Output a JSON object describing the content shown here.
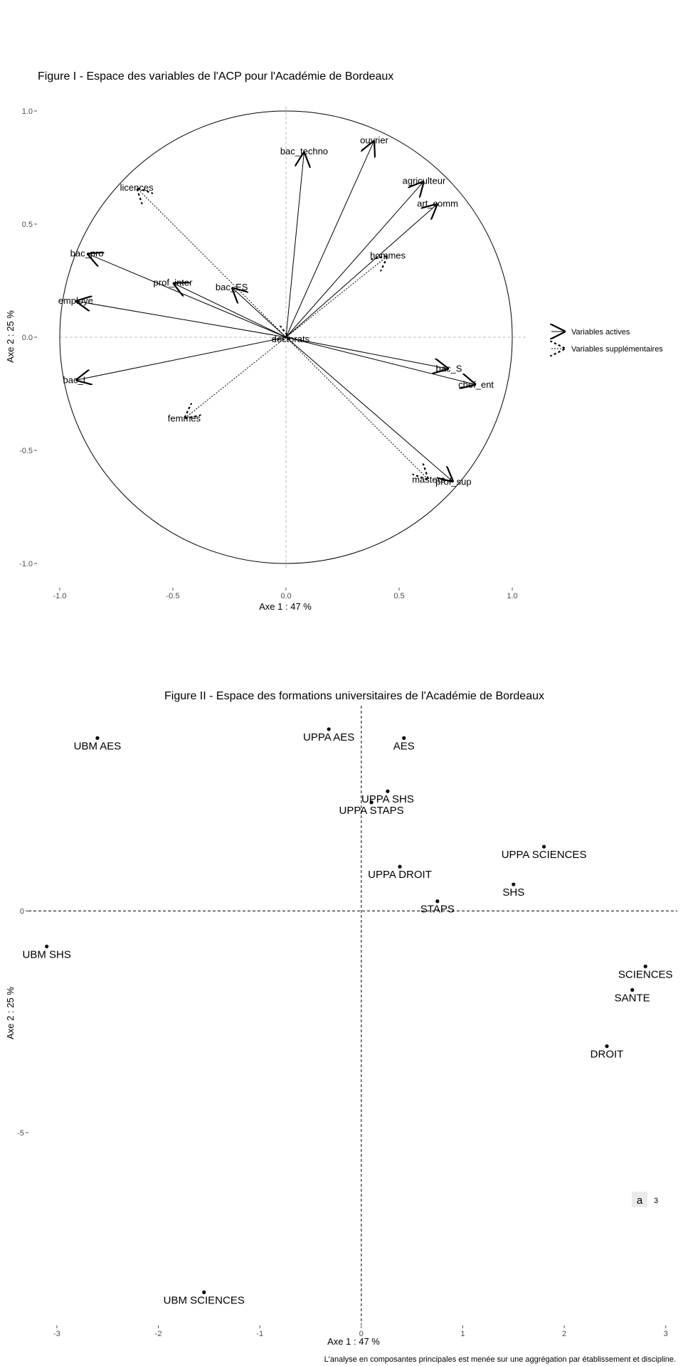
{
  "chart_data": [
    {
      "type": "vector",
      "title": "Figure I - Espace des variables de l'ACP pour l'Académie de Bordeaux",
      "xlabel": "Axe 1 : 47 %",
      "ylabel": "Axe 2 : 25 %",
      "xlim": [
        -1.0,
        1.0
      ],
      "ylim": [
        -1.0,
        1.0
      ],
      "xticks": [
        "-1.0",
        "-0.5",
        "0.0",
        "0.5",
        "1.0"
      ],
      "yticks": [
        "-1.0",
        "-0.5",
        "0.0",
        "0.5",
        "1.0"
      ],
      "unit_circle": true,
      "legend": {
        "position": "right",
        "entries": [
          "Variables actives",
          "Variables supplémentaires"
        ]
      },
      "active": [
        {
          "name": "ouvrier",
          "x": 0.39,
          "y": 0.87
        },
        {
          "name": "bac_techno",
          "x": 0.08,
          "y": 0.82
        },
        {
          "name": "agriculteur",
          "x": 0.61,
          "y": 0.69
        },
        {
          "name": "art_comm",
          "x": 0.67,
          "y": 0.59
        },
        {
          "name": "bac_pro",
          "x": -0.88,
          "y": 0.37
        },
        {
          "name": "prof_inter",
          "x": -0.5,
          "y": 0.24
        },
        {
          "name": "employe",
          "x": -0.93,
          "y": 0.16
        },
        {
          "name": "bac_ES",
          "x": -0.24,
          "y": 0.22
        },
        {
          "name": "bac_L",
          "x": -0.93,
          "y": -0.19
        },
        {
          "name": "bac_S",
          "x": 0.72,
          "y": -0.14
        },
        {
          "name": "chef_ent",
          "x": 0.84,
          "y": -0.21
        },
        {
          "name": "prof_sup",
          "x": 0.74,
          "y": -0.64
        }
      ],
      "supplementary": [
        {
          "name": "licences",
          "x": -0.66,
          "y": 0.66
        },
        {
          "name": "hommes",
          "x": 0.45,
          "y": 0.36
        },
        {
          "name": "doctorats",
          "x": 0.02,
          "y": -0.01
        },
        {
          "name": "femmes",
          "x": -0.45,
          "y": -0.36
        },
        {
          "name": "masters",
          "x": 0.63,
          "y": -0.63
        }
      ]
    },
    {
      "type": "scatter",
      "title": "Figure II - Espace des formations universitaires de l'Académie de Bordeaux",
      "xlabel": "Axe 1 : 47 %",
      "ylabel": "Axe 2 : 25 %",
      "xlim": [
        -3.35,
        3.1
      ],
      "ylim": [
        -9.3,
        4.5
      ],
      "xticks": [
        -3,
        -2,
        -1,
        0,
        1,
        2,
        3
      ],
      "yticks": [
        -5,
        0
      ],
      "legend": {
        "position": "bottom-right",
        "entries": [
          "a",
          "3"
        ]
      },
      "points": [
        {
          "name": "UBM AES",
          "x": -2.6,
          "y": 3.9
        },
        {
          "name": "UPPA AES",
          "x": -0.32,
          "y": 4.1
        },
        {
          "name": "AES",
          "x": 0.42,
          "y": 3.9
        },
        {
          "name": "UPPA SHS",
          "x": 0.26,
          "y": 2.7
        },
        {
          "name": "UPPA STAPS",
          "x": 0.1,
          "y": 2.45
        },
        {
          "name": "UPPA SCIENCES",
          "x": 1.8,
          "y": 1.45
        },
        {
          "name": "UPPA DROIT",
          "x": 0.38,
          "y": 1.0
        },
        {
          "name": "SHS",
          "x": 1.5,
          "y": 0.6
        },
        {
          "name": "STAPS",
          "x": 0.75,
          "y": 0.22
        },
        {
          "name": "UBM SHS",
          "x": -3.1,
          "y": -0.8
        },
        {
          "name": "SCIENCES",
          "x": 2.8,
          "y": -1.25
        },
        {
          "name": "SANTE",
          "x": 2.67,
          "y": -1.78
        },
        {
          "name": "DROIT",
          "x": 2.42,
          "y": -3.05
        },
        {
          "name": "UBM SCIENCES",
          "x": -1.55,
          "y": -8.6
        }
      ],
      "caption": "L'analyse en composantes principales est menée sur une aggrégation par établissement et discipline."
    }
  ]
}
